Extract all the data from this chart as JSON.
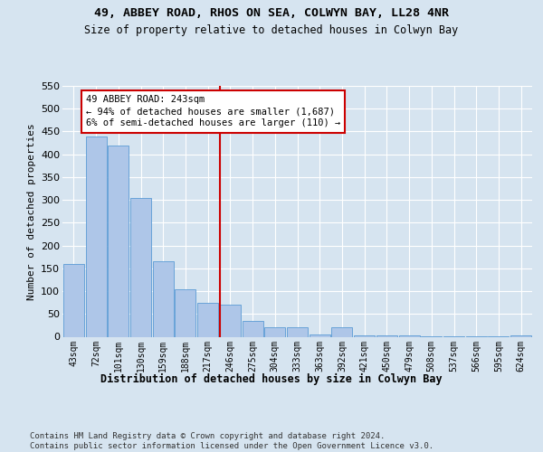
{
  "title": "49, ABBEY ROAD, RHOS ON SEA, COLWYN BAY, LL28 4NR",
  "subtitle": "Size of property relative to detached houses in Colwyn Bay",
  "xlabel": "Distribution of detached houses by size in Colwyn Bay",
  "ylabel": "Number of detached properties",
  "categories": [
    "43sqm",
    "72sqm",
    "101sqm",
    "130sqm",
    "159sqm",
    "188sqm",
    "217sqm",
    "246sqm",
    "275sqm",
    "304sqm",
    "333sqm",
    "363sqm",
    "392sqm",
    "421sqm",
    "450sqm",
    "479sqm",
    "508sqm",
    "537sqm",
    "566sqm",
    "595sqm",
    "624sqm"
  ],
  "values": [
    160,
    440,
    420,
    305,
    165,
    105,
    75,
    70,
    35,
    20,
    20,
    5,
    20,
    3,
    2,
    2,
    1,
    1,
    1,
    1,
    3
  ],
  "bar_color": "#aec6e8",
  "bar_edge_color": "#5b9bd5",
  "vline_index": 7,
  "vline_color": "#cc0000",
  "annotation_text": "49 ABBEY ROAD: 243sqm\n← 94% of detached houses are smaller (1,687)\n6% of semi-detached houses are larger (110) →",
  "annotation_box_edgecolor": "#cc0000",
  "bg_color": "#d6e4f0",
  "footer_text": "Contains HM Land Registry data © Crown copyright and database right 2024.\nContains public sector information licensed under the Open Government Licence v3.0.",
  "ylim": [
    0,
    550
  ],
  "yticks": [
    0,
    50,
    100,
    150,
    200,
    250,
    300,
    350,
    400,
    450,
    500,
    550
  ]
}
